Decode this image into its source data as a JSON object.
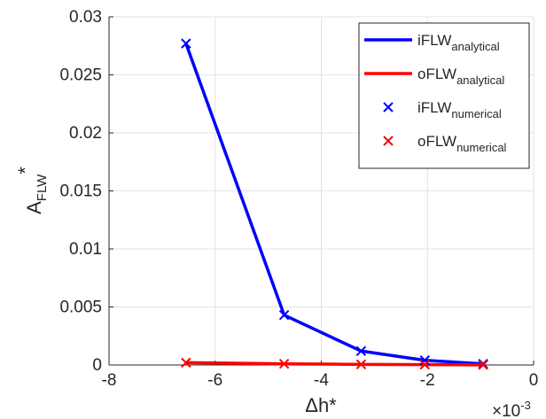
{
  "chart_data": {
    "type": "line",
    "xlabel": "Δh*",
    "ylabel": "A",
    "ylabel_sub": "FLW",
    "ylabel_sup": "*",
    "x_multiplier": "×10",
    "x_multiplier_exp": "-3",
    "xlim": [
      -8,
      0
    ],
    "ylim": [
      0,
      0.03
    ],
    "grid": true,
    "legend_position": "top-right",
    "x_ticks": [
      -8,
      -6,
      -4,
      -2,
      0
    ],
    "y_ticks": [
      0,
      0.005,
      0.01,
      0.015,
      0.02,
      0.025,
      0.03
    ],
    "x_tick_labels": [
      "-8",
      "-6",
      "-4",
      "-2",
      "0"
    ],
    "y_tick_labels": [
      "0",
      "0.005",
      "0.01",
      "0.015",
      "0.02",
      "0.025",
      "0.03"
    ],
    "series": [
      {
        "name": "iFLW",
        "name_sub": "analytical",
        "style": "line",
        "color": "#0000ff",
        "x": [
          -6.55,
          -4.7,
          -3.25,
          -2.05,
          -0.95
        ],
        "y": [
          0.0277,
          0.0043,
          0.0012,
          0.0004,
          0.0001
        ]
      },
      {
        "name": "oFLW",
        "name_sub": "analytical",
        "style": "line",
        "color": "#ff0000",
        "x": [
          -6.55,
          -4.7,
          -3.25,
          -2.05,
          -0.95
        ],
        "y": [
          0.0002,
          0.0001,
          5e-05,
          3e-05,
          1e-05
        ]
      },
      {
        "name": "iFLW",
        "name_sub": "numerical",
        "style": "marker-x",
        "color": "#0000ff",
        "x": [
          -6.55,
          -4.7,
          -3.25,
          -2.05,
          -0.95
        ],
        "y": [
          0.0277,
          0.0043,
          0.0012,
          0.0004,
          0.0001
        ]
      },
      {
        "name": "oFLW",
        "name_sub": "numerical",
        "style": "marker-x",
        "color": "#ff0000",
        "x": [
          -6.55,
          -4.7,
          -3.25,
          -2.05,
          -0.95
        ],
        "y": [
          0.0002,
          0.0001,
          5e-05,
          3e-05,
          1e-05
        ]
      }
    ]
  }
}
